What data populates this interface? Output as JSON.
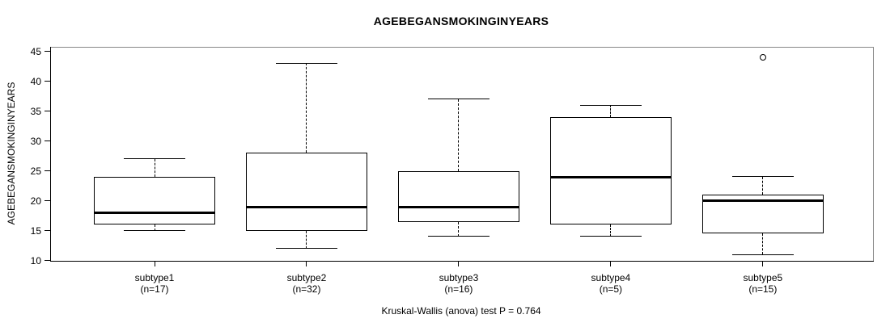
{
  "title": "AGEBEGANSMOKINGINYEARS",
  "y_axis_label": "AGEBEGANSMOKINGINYEARS",
  "footer": "Kruskal-Wallis (anova) test P = 0.764",
  "colors": {
    "background": "#ffffff",
    "ink": "#000000",
    "frame": "#888888"
  },
  "chart_data": {
    "type": "boxplot",
    "title": "AGEBEGANSMOKINGINYEARS",
    "xlabel": "",
    "ylabel": "AGEBEGANSMOKINGINYEARS",
    "ylim": [
      10,
      45
    ],
    "yticks": [
      10,
      15,
      20,
      25,
      30,
      35,
      40,
      45
    ],
    "grid": false,
    "legend": "none",
    "annotation": "Kruskal-Wallis (anova) test P = 0.764",
    "categories": [
      "subtype1",
      "subtype2",
      "subtype3",
      "subtype4",
      "subtype5"
    ],
    "category_sublabels": [
      "(n=17)",
      "(n=32)",
      "(n=16)",
      "(n=5)",
      "(n=15)"
    ],
    "series": [
      {
        "name": "subtype1",
        "n": 17,
        "whisker_low": 15,
        "q1": 16,
        "median": 18,
        "q3": 24,
        "whisker_high": 27,
        "outliers": []
      },
      {
        "name": "subtype2",
        "n": 32,
        "whisker_low": 12,
        "q1": 15,
        "median": 19,
        "q3": 28,
        "whisker_high": 43,
        "outliers": []
      },
      {
        "name": "subtype3",
        "n": 16,
        "whisker_low": 14,
        "q1": 16.5,
        "median": 19,
        "q3": 25,
        "whisker_high": 37,
        "outliers": []
      },
      {
        "name": "subtype4",
        "n": 5,
        "whisker_low": 14,
        "q1": 16,
        "median": 24,
        "q3": 34,
        "whisker_high": 36,
        "outliers": []
      },
      {
        "name": "subtype5",
        "n": 15,
        "whisker_low": 11,
        "q1": 14.5,
        "median": 20,
        "q3": 21,
        "whisker_high": 24,
        "outliers": [
          44
        ]
      }
    ]
  }
}
